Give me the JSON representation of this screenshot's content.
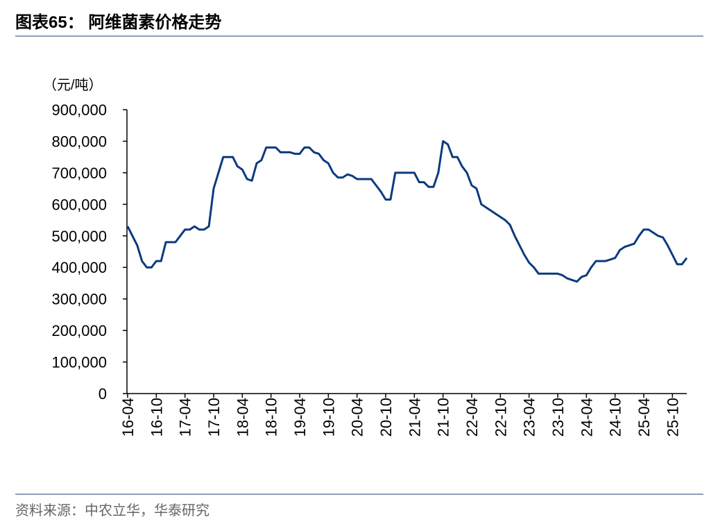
{
  "chart_data": {
    "type": "line",
    "title": "图表65：  阿维菌素价格走势",
    "y_label": "（元/吨）",
    "source": "资料来源：中农立华，华泰研究",
    "color": "#0b3a7e",
    "categories": [
      "16-04",
      null,
      null,
      null,
      null,
      null,
      "16-10",
      null,
      null,
      null,
      null,
      null,
      "17-04",
      null,
      null,
      null,
      null,
      null,
      "17-10",
      null,
      null,
      null,
      null,
      null,
      "18-04",
      null,
      null,
      null,
      null,
      null,
      "18-10",
      null,
      null,
      null,
      null,
      null,
      "19-04",
      null,
      null,
      null,
      null,
      null,
      "19-10",
      null,
      null,
      null,
      null,
      null,
      "20-04",
      null,
      null,
      null,
      null,
      null,
      "20-10",
      null,
      null,
      null,
      null,
      null,
      "21-04",
      null,
      null,
      null,
      null,
      null,
      "21-10",
      null,
      null,
      null,
      null,
      null,
      "22-04",
      null,
      null,
      null,
      null,
      null,
      "22-10",
      null,
      null,
      null,
      null,
      null,
      "23-04",
      null,
      null,
      null,
      null,
      null,
      "23-10",
      null,
      null,
      null,
      null,
      null,
      "24-04",
      null,
      null,
      null,
      null,
      null,
      "24-10",
      null,
      null,
      null,
      null,
      null,
      "25-04",
      null,
      null,
      null,
      null,
      null,
      "25-10",
      null,
      null,
      null
    ],
    "values": [
      530000,
      500000,
      470000,
      420000,
      400000,
      400000,
      420000,
      420000,
      480000,
      480000,
      480000,
      500000,
      520000,
      520000,
      530000,
      520000,
      520000,
      530000,
      650000,
      700000,
      750000,
      750000,
      750000,
      720000,
      710000,
      680000,
      675000,
      730000,
      740000,
      780000,
      780000,
      780000,
      765000,
      765000,
      765000,
      760000,
      760000,
      780000,
      780000,
      765000,
      760000,
      740000,
      730000,
      700000,
      685000,
      685000,
      695000,
      690000,
      680000,
      680000,
      680000,
      680000,
      660000,
      640000,
      615000,
      615000,
      700000,
      700000,
      700000,
      700000,
      700000,
      670000,
      670000,
      655000,
      655000,
      700000,
      800000,
      790000,
      750000,
      750000,
      720000,
      700000,
      660000,
      650000,
      600000,
      590000,
      580000,
      570000,
      560000,
      550000,
      535000,
      500000,
      470000,
      440000,
      415000,
      400000,
      380000,
      380000,
      380000,
      380000,
      380000,
      375000,
      365000,
      360000,
      355000,
      370000,
      375000,
      400000,
      420000,
      420000,
      420000,
      425000,
      430000,
      455000,
      465000,
      470000,
      475000,
      500000,
      520000,
      520000,
      510000,
      500000,
      495000,
      470000,
      440000,
      410000,
      410000,
      430000
    ],
    "ylim": [
      0,
      900000
    ],
    "yticks": [
      {
        "value": 0,
        "label": "0"
      },
      {
        "value": 100000,
        "label": "100,000"
      },
      {
        "value": 200000,
        "label": "200,000"
      },
      {
        "value": 300000,
        "label": "300,000"
      },
      {
        "value": 400000,
        "label": "400,000"
      },
      {
        "value": 500000,
        "label": "500,000"
      },
      {
        "value": 600000,
        "label": "600,000"
      },
      {
        "value": 700000,
        "label": "700,000"
      },
      {
        "value": 800000,
        "label": "800,000"
      },
      {
        "value": 900000,
        "label": "900,000"
      }
    ]
  }
}
